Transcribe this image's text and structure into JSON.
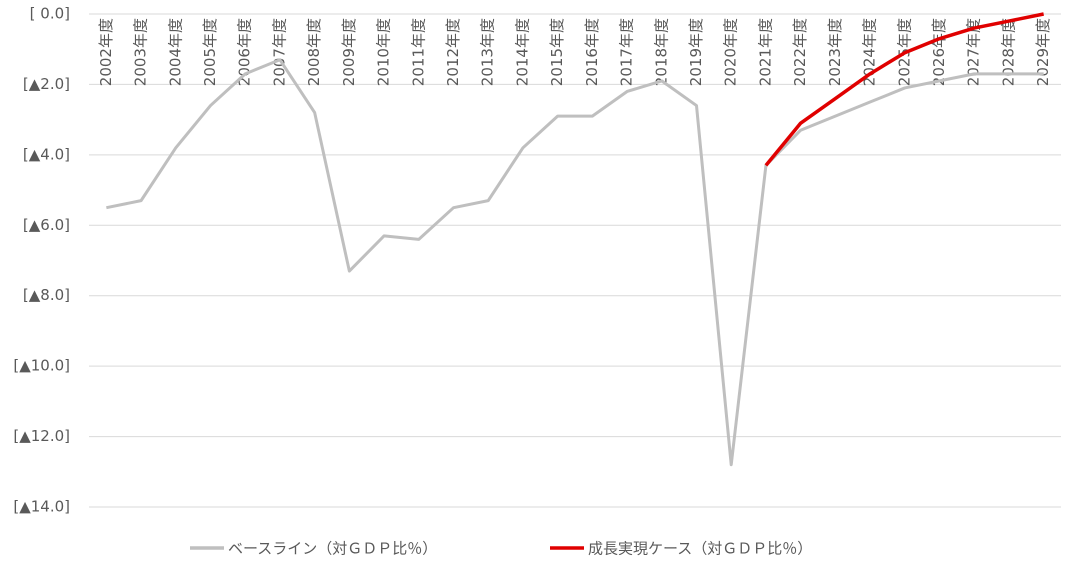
{
  "chart_data": {
    "type": "line",
    "categories": [
      "2002年度",
      "2003年度",
      "2004年度",
      "2005年度",
      "2006年度",
      "2007年度",
      "2008年度",
      "2009年度",
      "2010年度",
      "2011年度",
      "2012年度",
      "2013年度",
      "2014年度",
      "2015年度",
      "2016年度",
      "2017年度",
      "2018年度",
      "2019年度",
      "2020年度",
      "2021年度",
      "2022年度",
      "2023年度",
      "2024年度",
      "2025年度",
      "2026年度",
      "2027年度",
      "2028年度",
      "2029年度"
    ],
    "series": [
      {
        "name": "ベースライン（対ＧＤＰ比％）",
        "color": "#bfbfbf",
        "values": [
          -5.5,
          -5.3,
          -3.8,
          -2.6,
          -1.7,
          -1.3,
          -2.8,
          -7.3,
          -6.3,
          -6.4,
          -5.5,
          -5.3,
          -3.8,
          -2.9,
          -2.9,
          -2.2,
          -1.9,
          -2.6,
          -12.8,
          -4.3,
          -3.3,
          -2.9,
          -2.5,
          -2.1,
          -1.9,
          -1.7,
          -1.7,
          -1.7
        ]
      },
      {
        "name": "成長実現ケース（対ＧＤＰ比％）",
        "color": "#e00000",
        "values": [
          null,
          null,
          null,
          null,
          null,
          null,
          null,
          null,
          null,
          null,
          null,
          null,
          null,
          null,
          null,
          null,
          null,
          null,
          null,
          -4.3,
          -3.1,
          -2.4,
          -1.7,
          -1.1,
          -0.7,
          -0.4,
          -0.2,
          0.0
        ]
      }
    ],
    "ylim": [
      -14,
      0
    ],
    "yticks": [
      {
        "value": 0,
        "label": "[ 0.0]"
      },
      {
        "value": -2,
        "label": "[▲2.0]"
      },
      {
        "value": -4,
        "label": "[▲4.0]"
      },
      {
        "value": -6,
        "label": "[▲6.0]"
      },
      {
        "value": -8,
        "label": "[▲8.0]"
      },
      {
        "value": -10,
        "label": "[▲10.0]"
      },
      {
        "value": -12,
        "label": "[▲12.0]"
      },
      {
        "value": -14,
        "label": "[▲14.0]"
      }
    ],
    "grid": true,
    "legend": "bottom"
  }
}
